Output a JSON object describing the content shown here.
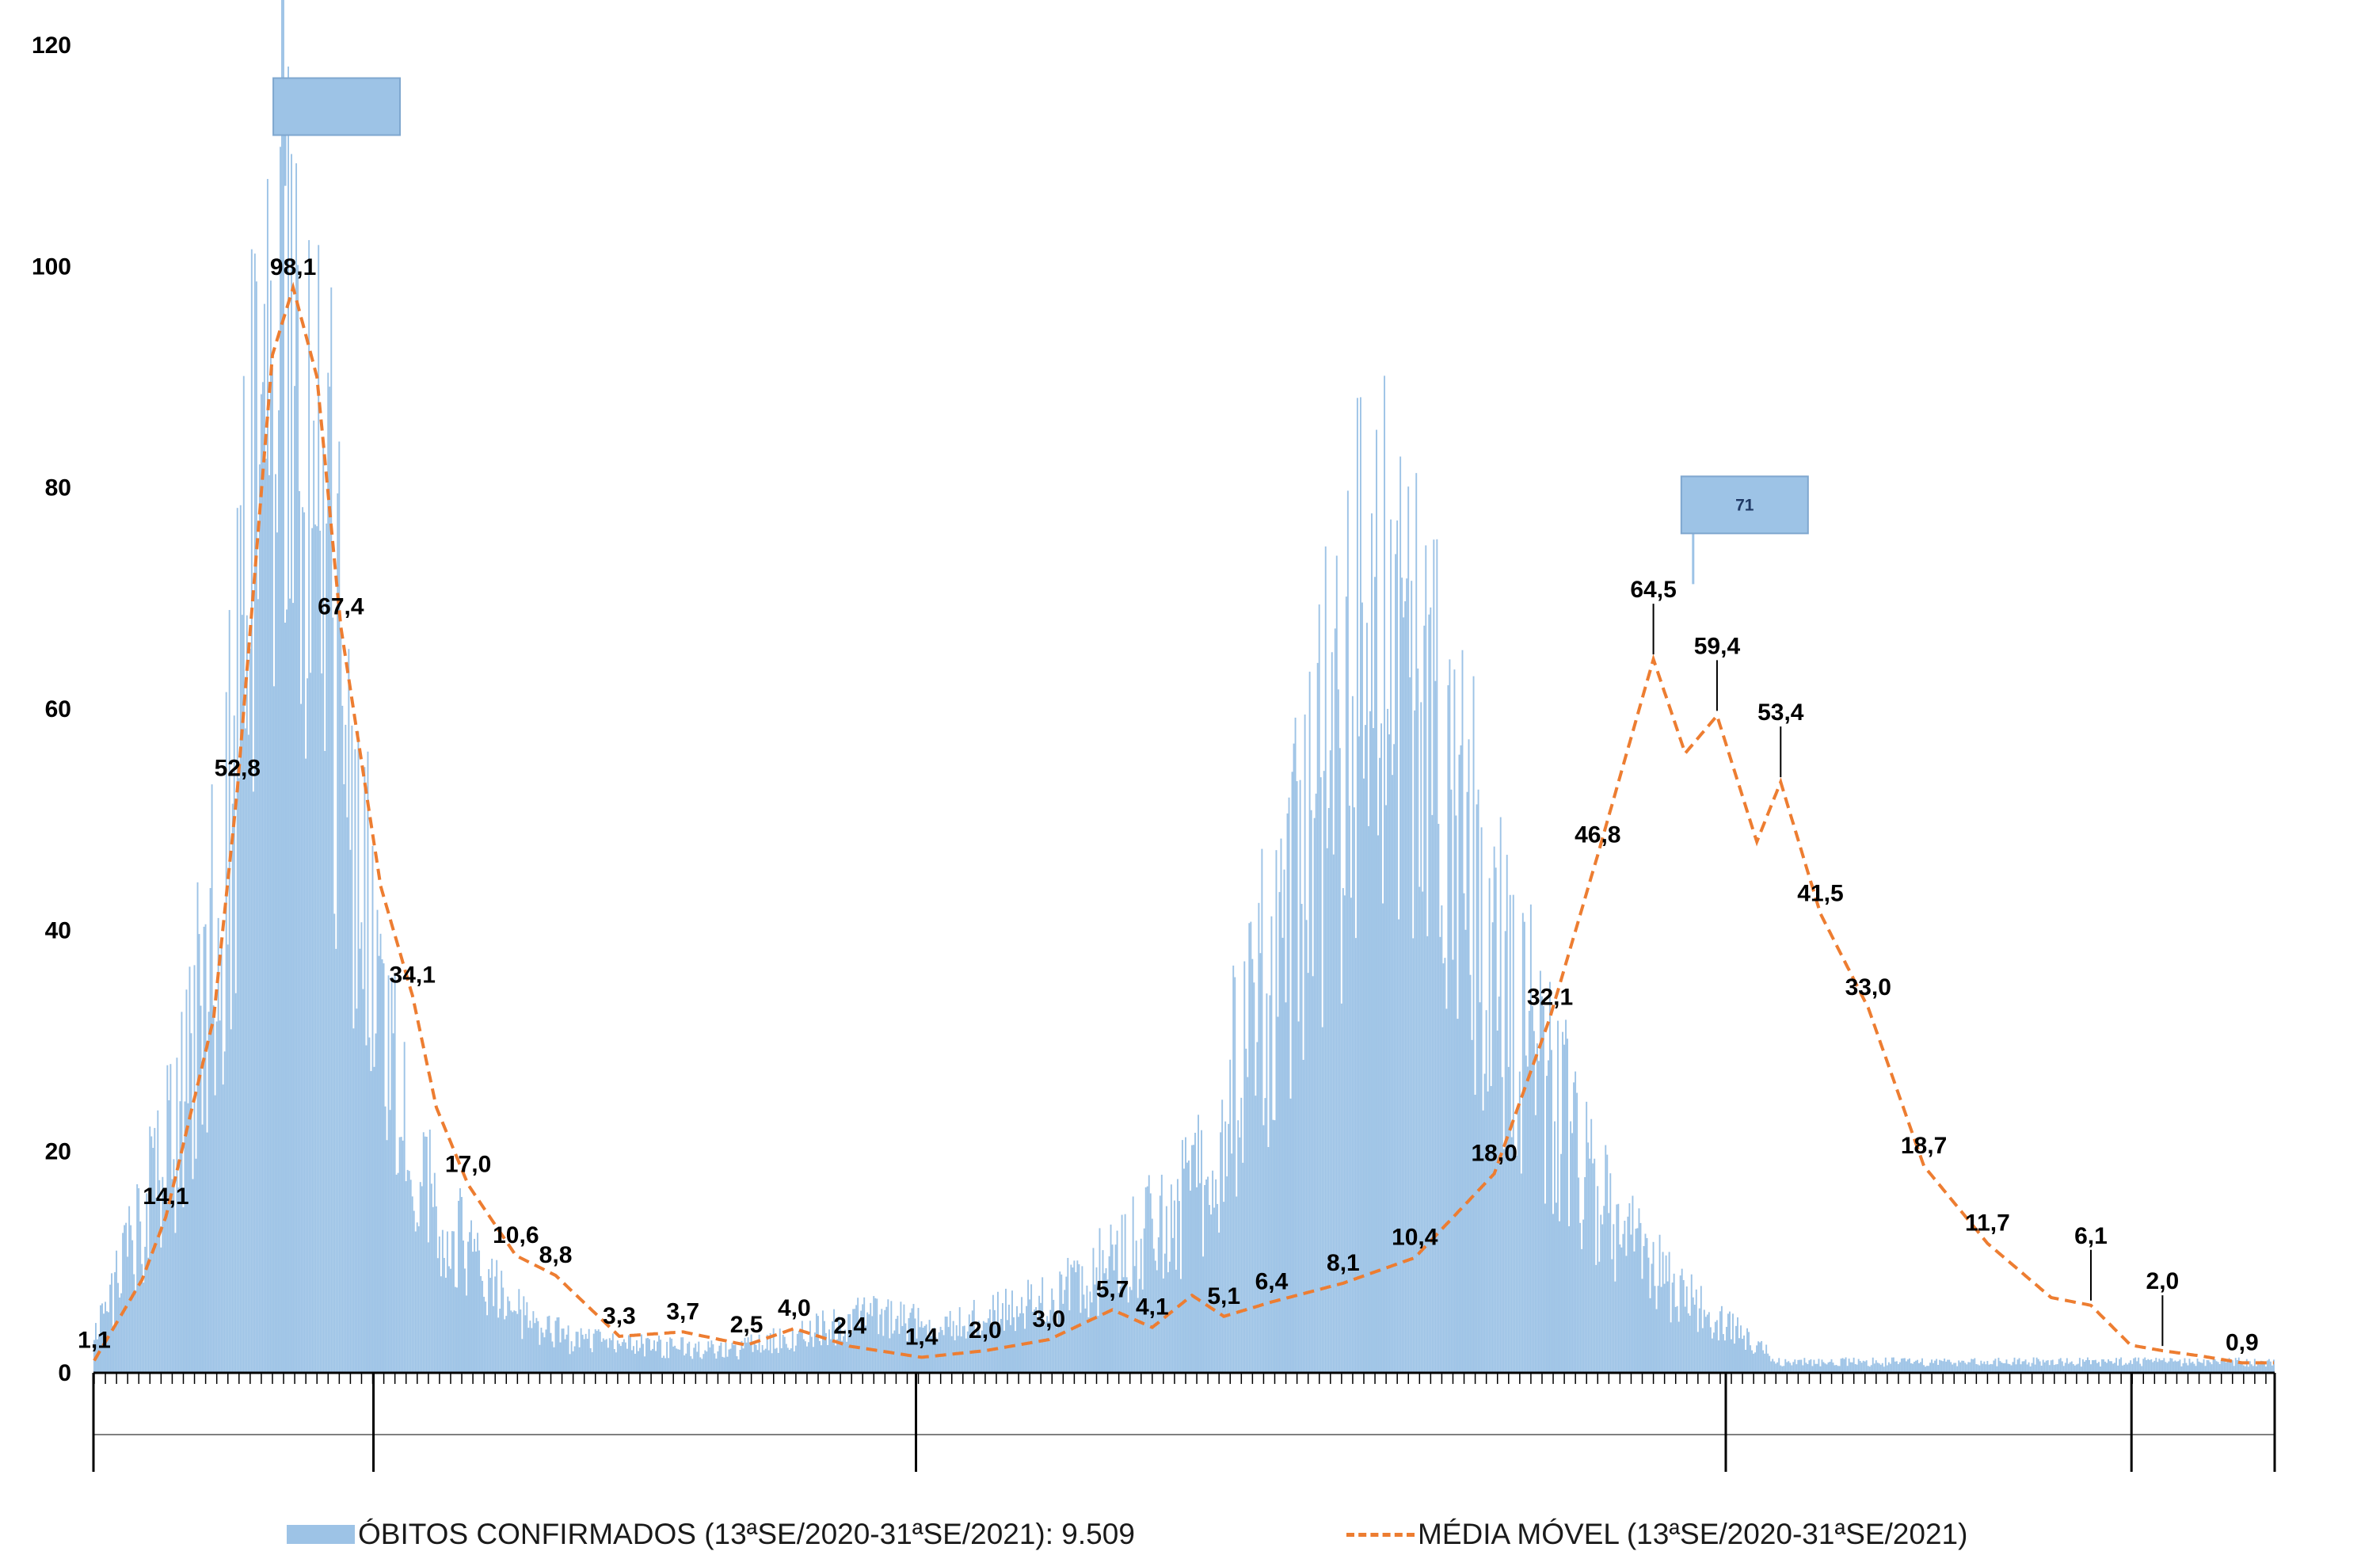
{
  "chart_data": {
    "type": "bar",
    "xlabel": "",
    "ylabel": "",
    "ylim": [
      0,
      120
    ],
    "yticks": [
      "0",
      "20",
      "40",
      "60",
      "80",
      "100",
      "120"
    ],
    "grid": false,
    "legend_position": "bottom",
    "colors": {
      "bars": "#9dc3e6",
      "moving_average": "#ed7d31",
      "axis": "#000000",
      "callout": "#9dc3e6"
    },
    "series": [
      {
        "name": "ÓBITOS CONFIRMADOS (13ªSE/2020-31ªSE/2021): 9.509",
        "kind": "bar",
        "anchors": [
          [
            0,
            3
          ],
          [
            25,
            12
          ],
          [
            50,
            22
          ],
          [
            80,
            42
          ],
          [
            100,
            78
          ],
          [
            112,
            96
          ],
          [
            120,
            108
          ],
          [
            135,
            96
          ],
          [
            150,
            72
          ],
          [
            165,
            52
          ],
          [
            180,
            32
          ],
          [
            200,
            20
          ],
          [
            230,
            12
          ],
          [
            260,
            6
          ],
          [
            300,
            3
          ],
          [
            400,
            2
          ],
          [
            480,
            5
          ],
          [
            560,
            5
          ],
          [
            620,
            8
          ],
          [
            690,
            16
          ],
          [
            730,
            32
          ],
          [
            760,
            46
          ],
          [
            790,
            64
          ],
          [
            810,
            66
          ],
          [
            830,
            60
          ],
          [
            850,
            56
          ],
          [
            875,
            40
          ],
          [
            905,
            30
          ],
          [
            935,
            20
          ],
          [
            965,
            12
          ],
          [
            1000,
            7
          ],
          [
            1030,
            4
          ],
          [
            1060,
            1
          ]
        ]
      },
      {
        "name": "MÉDIA MÓVEL (13ªSE/2020-31ªSE/2021)",
        "kind": "line",
        "anchors": [
          [
            0,
            1.1
          ],
          [
            30,
            8.4
          ],
          [
            45,
            14.1
          ],
          [
            75,
            32
          ],
          [
            90,
            52.8
          ],
          [
            112,
            92
          ],
          [
            125,
            98.1
          ],
          [
            140,
            90
          ],
          [
            155,
            67.4
          ],
          [
            180,
            44
          ],
          [
            200,
            34.1
          ],
          [
            215,
            24
          ],
          [
            235,
            17.0
          ],
          [
            265,
            10.6
          ],
          [
            290,
            8.8
          ],
          [
            330,
            3.3
          ],
          [
            370,
            3.7
          ],
          [
            410,
            2.5
          ],
          [
            440,
            4.0
          ],
          [
            475,
            2.4
          ],
          [
            520,
            1.4
          ],
          [
            560,
            2.0
          ],
          [
            600,
            3.0
          ],
          [
            640,
            5.7
          ],
          [
            665,
            4.1
          ],
          [
            690,
            7.0
          ],
          [
            710,
            5.1
          ],
          [
            740,
            6.4
          ],
          [
            785,
            8.1
          ],
          [
            830,
            10.4
          ],
          [
            880,
            18.0
          ],
          [
            915,
            32.1
          ],
          [
            945,
            46.8
          ],
          [
            980,
            64.5
          ],
          [
            1000,
            56
          ],
          [
            1020,
            59.4
          ],
          [
            1045,
            48
          ],
          [
            1060,
            53.4
          ],
          [
            1085,
            41.5
          ],
          [
            1115,
            33.0
          ],
          [
            1150,
            18.7
          ],
          [
            1190,
            11.7
          ],
          [
            1230,
            6.8
          ],
          [
            1255,
            6.1
          ],
          [
            1280,
            2.5
          ],
          [
            1300,
            2.0
          ],
          [
            1325,
            1.5
          ],
          [
            1350,
            0.9
          ]
        ]
      }
    ],
    "data_labels": [
      {
        "series": 1,
        "x": 0,
        "text": "1,1"
      },
      {
        "series": 1,
        "x": 45,
        "text": "14,1"
      },
      {
        "series": 1,
        "x": 90,
        "text": "52,8"
      },
      {
        "series": 1,
        "x": 125,
        "text": "98,1"
      },
      {
        "series": 1,
        "x": 155,
        "text": "67,4"
      },
      {
        "series": 1,
        "x": 200,
        "text": "34,1"
      },
      {
        "series": 1,
        "x": 235,
        "text": "17,0"
      },
      {
        "series": 1,
        "x": 265,
        "text": "10,6"
      },
      {
        "series": 1,
        "x": 290,
        "text": "8,8"
      },
      {
        "series": 1,
        "x": 330,
        "text": "3,3"
      },
      {
        "series": 1,
        "x": 370,
        "text": "3,7"
      },
      {
        "series": 1,
        "x": 410,
        "text": "2,5"
      },
      {
        "series": 1,
        "x": 440,
        "text": "4,0"
      },
      {
        "series": 1,
        "x": 475,
        "text": "2,4"
      },
      {
        "series": 1,
        "x": 520,
        "text": "1,4"
      },
      {
        "series": 1,
        "x": 560,
        "text": "2,0"
      },
      {
        "series": 1,
        "x": 600,
        "text": "3,0"
      },
      {
        "series": 1,
        "x": 640,
        "text": "5,7"
      },
      {
        "series": 1,
        "x": 665,
        "text": "4,1"
      },
      {
        "series": 1,
        "x": 710,
        "text": "5,1"
      },
      {
        "series": 1,
        "x": 740,
        "text": "6,4"
      },
      {
        "series": 1,
        "x": 785,
        "text": "8,1"
      },
      {
        "series": 1,
        "x": 830,
        "text": "10,4"
      },
      {
        "series": 1,
        "x": 880,
        "text": "18,0"
      },
      {
        "series": 1,
        "x": 915,
        "text": "32,1"
      },
      {
        "series": 1,
        "x": 945,
        "text": "46,8"
      },
      {
        "series": 1,
        "x": 980,
        "text": "64,5",
        "arrow": true
      },
      {
        "series": 1,
        "x": 1020,
        "text": "59,4",
        "arrow": true
      },
      {
        "series": 1,
        "x": 1060,
        "text": "53,4",
        "arrow": true
      },
      {
        "series": 1,
        "x": 1085,
        "text": "41,5"
      },
      {
        "series": 1,
        "x": 1115,
        "text": "33,0"
      },
      {
        "series": 1,
        "x": 1150,
        "text": "18,7"
      },
      {
        "series": 1,
        "x": 1190,
        "text": "11,7"
      },
      {
        "series": 1,
        "x": 1255,
        "text": "6,1",
        "arrow": true
      },
      {
        "series": 1,
        "x": 1300,
        "text": "2,0",
        "arrow": true
      },
      {
        "series": 1,
        "x": 1350,
        "text": "0,9"
      }
    ],
    "callouts": [
      {
        "x": 120,
        "value": 107
      },
      {
        "x": 1005,
        "value": 71,
        "text": "71"
      }
    ]
  },
  "legend": {
    "bars_label": "ÓBITOS CONFIRMADOS (13ªSE/2020-31ªSE/2021): 9.509",
    "line_label": "MÉDIA MÓVEL (13ªSE/2020-31ªSE/2021)"
  }
}
